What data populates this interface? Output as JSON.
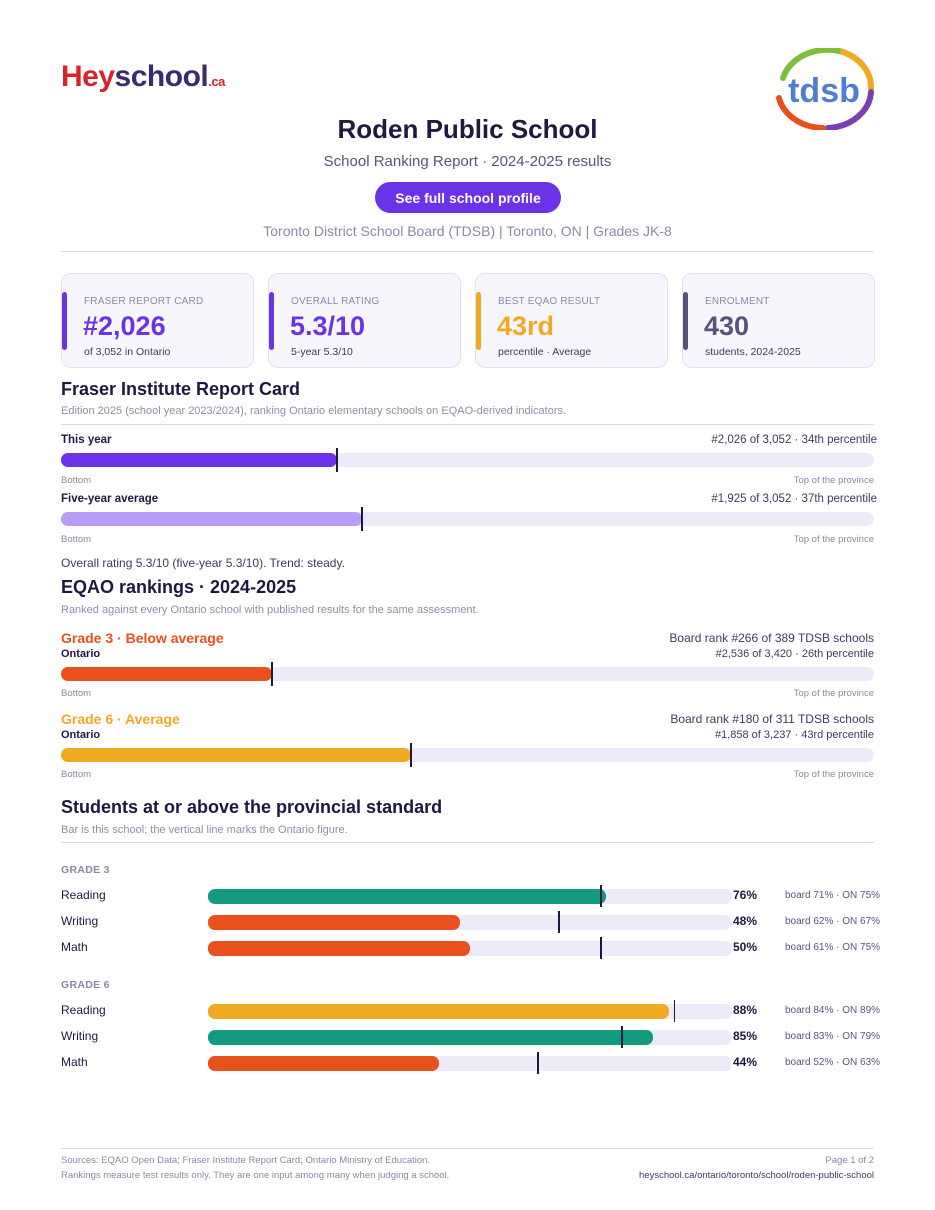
{
  "header": {
    "brand_hey": "Hey",
    "brand_school": "school",
    "brand_ca": ".ca",
    "partner_logo_text": "tdsb",
    "title": "Roden Public School",
    "subtitle": "School Ranking Report  ·  2024-2025 results",
    "profile_button": "See full school profile",
    "board_line": "Toronto District School Board (TDSB)  |  Toronto, ON  |  Grades JK-8"
  },
  "cards": [
    {
      "label": "FRASER REPORT CARD",
      "value": "#2,026",
      "sub": "of 3,052 in Ontario",
      "color": "#6a33e8",
      "value_color": "#6a33e8"
    },
    {
      "label": "OVERALL RATING",
      "value": "5.3/10",
      "sub": "5-year 5.3/10",
      "color": "#6a33e8",
      "value_color": "#6a33e8"
    },
    {
      "label": "BEST EQAO RESULT",
      "value": "43rd",
      "sub": "percentile  ·  Average",
      "color": "#f2a922",
      "value_color": "#f2a922"
    },
    {
      "label": "ENROLMENT",
      "value": "430",
      "sub": "students, 2024-2025",
      "color": "#5b5279",
      "value_color": "#5b5279"
    }
  ],
  "fraser": {
    "title": "Fraser Institute Report Card",
    "desc": "Edition 2025 (school year 2023/2024), ranking Ontario elementary schools on EQAO-derived indicators.",
    "rows": [
      {
        "label": "This year",
        "rank": "#2,026 of 3,052  ·  34th percentile",
        "percentile": 34,
        "color": "#6a33e8"
      },
      {
        "label": "Five-year average",
        "rank": "#1,925 of 3,052  ·  37th percentile",
        "percentile": 37,
        "color": "#b89cf5"
      }
    ],
    "axis_left": "Bottom",
    "axis_right": "Top of the province",
    "overall": "Overall rating 5.3/10 (five-year 5.3/10). Trend: steady."
  },
  "eqao": {
    "title": "EQAO rankings  ·  2024-2025",
    "desc": "Ranked against every Ontario school with published results for the same assessment.",
    "grades": [
      {
        "title": "Grade 3  ·  Below average",
        "sub": "Ontario",
        "board_rank": "Board rank #266 of 389 TDSB schools",
        "ontario_rank": "#2,536 of 3,420  ·  26th percentile",
        "percentile": 26,
        "color": "#e8501c"
      },
      {
        "title": "Grade 6  ·  Average",
        "sub": "Ontario",
        "board_rank": "Board rank #180 of 311 TDSB schools",
        "ontario_rank": "#1,858 of 3,237  ·  43rd percentile",
        "percentile": 43,
        "color": "#f2a922"
      }
    ],
    "axis_left": "Bottom",
    "axis_right": "Top of the province"
  },
  "standard": {
    "title": "Students at or above the provincial standard",
    "desc": "Bar is this school; the vertical line marks the Ontario figure.",
    "groups": [
      {
        "label": "GRADE 3",
        "subjects": [
          {
            "name": "Reading",
            "pct_label": "76%",
            "value": 76,
            "ontario": 75,
            "cmp": "board 71%  ·  ON 75%",
            "color": "#149a7e"
          },
          {
            "name": "Writing",
            "pct_label": "48%",
            "value": 48,
            "ontario": 67,
            "cmp": "board 62%  ·  ON 67%",
            "color": "#e8501c"
          },
          {
            "name": "Math",
            "pct_label": "50%",
            "value": 50,
            "ontario": 75,
            "cmp": "board 61%  ·  ON 75%",
            "color": "#e8501c"
          }
        ]
      },
      {
        "label": "GRADE 6",
        "subjects": [
          {
            "name": "Reading",
            "pct_label": "88%",
            "value": 88,
            "ontario": 89,
            "cmp": "board 84%  ·  ON 89%",
            "color": "#f2a922"
          },
          {
            "name": "Writing",
            "pct_label": "85%",
            "value": 85,
            "ontario": 79,
            "cmp": "board 83%  ·  ON 79%",
            "color": "#149a7e"
          },
          {
            "name": "Math",
            "pct_label": "44%",
            "value": 44,
            "ontario": 63,
            "cmp": "board 52%  ·  ON 63%",
            "color": "#e8501c"
          }
        ]
      }
    ]
  },
  "footer": {
    "sources": "Sources: EQAO Open Data; Fraser Institute Report Card; Ontario Ministry of Education.",
    "disclaimer": "Rankings measure test results only. They are one input among many when judging a school.",
    "page": "Page 1 of 2",
    "url": "heyschool.ca/ontario/toronto/school/roden-public-school"
  }
}
